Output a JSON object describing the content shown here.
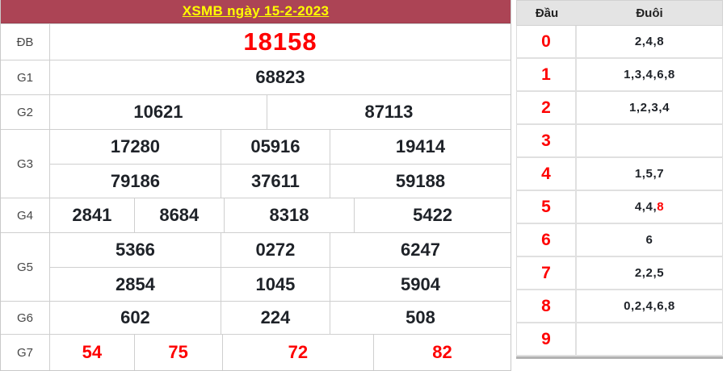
{
  "title": "XSMB ngày 15-2-2023",
  "colors": {
    "header_bg": "#AC4455",
    "title_text": "#FFFF00",
    "highlight_red": "#FE0000",
    "number_text": "#1E2228",
    "border": "#CFCFCF",
    "ht_header_bg": "#E4E4E4"
  },
  "prizes": {
    "labels": {
      "db": "ĐB",
      "g1": "G1",
      "g2": "G2",
      "g3": "G3",
      "g4": "G4",
      "g5": "G5",
      "g6": "G6",
      "g7": "G7"
    },
    "db": "18158",
    "g1": "68823",
    "g2": [
      "10621",
      "87113"
    ],
    "g3": [
      [
        "17280",
        "05916",
        "19414"
      ],
      [
        "79186",
        "37611",
        "59188"
      ]
    ],
    "g4": [
      "2841",
      "8684",
      "8318",
      "5422"
    ],
    "g5": [
      [
        "5366",
        "0272",
        "6247"
      ],
      [
        "2854",
        "1045",
        "5904"
      ]
    ],
    "g6": [
      "602",
      "224",
      "508"
    ],
    "g7": [
      "54",
      "75",
      "72",
      "82"
    ]
  },
  "head_tail": {
    "headers": {
      "dau": "Đầu",
      "duoi": "Đuôi"
    },
    "rows": [
      {
        "dau": "0",
        "duoi": "2,4,8"
      },
      {
        "dau": "1",
        "duoi": "1,3,4,6,8"
      },
      {
        "dau": "2",
        "duoi": "1,2,3,4"
      },
      {
        "dau": "3",
        "duoi": ""
      },
      {
        "dau": "4",
        "duoi": "1,5,7"
      },
      {
        "dau": "5",
        "duoi": "4,4,",
        "duoi_red": "8"
      },
      {
        "dau": "6",
        "duoi": "6"
      },
      {
        "dau": "7",
        "duoi": "2,2,5"
      },
      {
        "dau": "8",
        "duoi": "0,2,4,6,8"
      },
      {
        "dau": "9",
        "duoi": ""
      }
    ]
  }
}
